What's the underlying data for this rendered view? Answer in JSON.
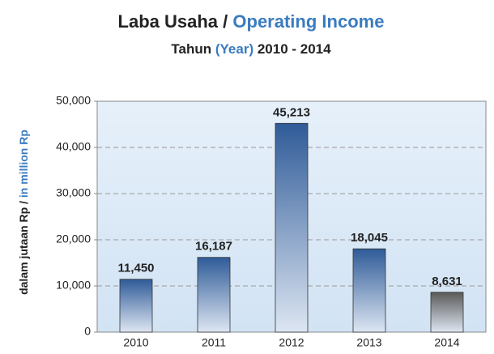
{
  "chart_data": {
    "type": "bar",
    "title": [
      "Laba Usaha / ",
      "Operating Income"
    ],
    "subtitle": [
      "Tahun ",
      "(Year)",
      " 2010 - 2014"
    ],
    "y_label": [
      "dalam jutaan Rp / ",
      "in million Rp"
    ],
    "categories": [
      "2010",
      "2011",
      "2012",
      "2013",
      "2014"
    ],
    "values": [
      11450,
      16187,
      45213,
      18045,
      8631
    ],
    "value_labels": [
      "11,450",
      "16,187",
      "45,213",
      "18,045",
      "8,631"
    ],
    "colors": [
      "#2f5b98",
      "#2f5b98",
      "#2f5b98",
      "#2f5b98",
      "#5a5a5a"
    ],
    "ylim": [
      0,
      50000
    ],
    "yticks": [
      0,
      {
        "value": 10000,
        "label": "10,000"
      },
      {
        "value": 20000,
        "label": "20,000"
      },
      {
        "value": 30000,
        "label": "30,000"
      },
      {
        "value": 40000,
        "label": "40,000"
      },
      {
        "value": 50000,
        "label": "50,000"
      }
    ],
    "grid": true
  }
}
